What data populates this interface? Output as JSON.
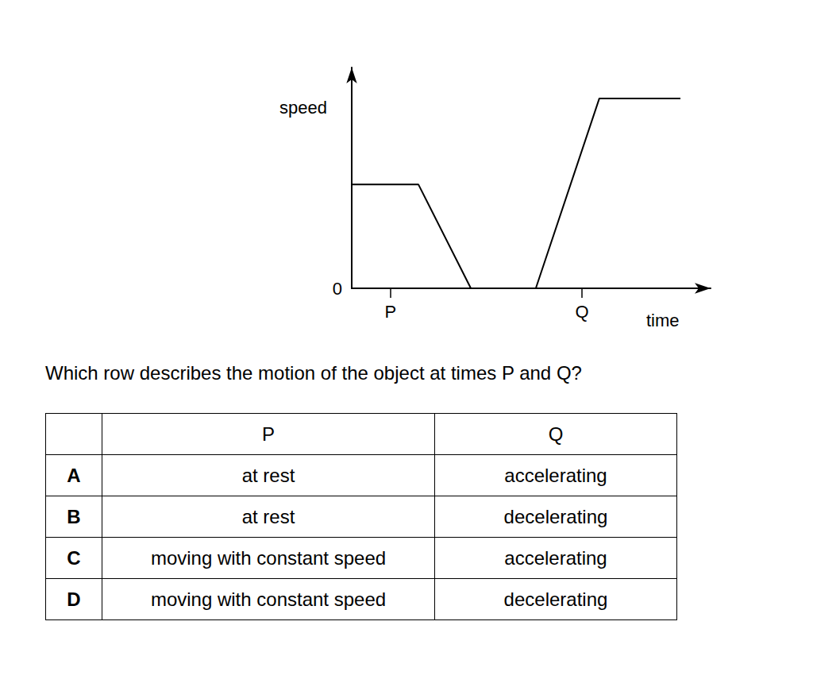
{
  "chart_data": {
    "type": "line",
    "x_label": "time",
    "y_label": "speed",
    "x": [
      0,
      1.86,
      3.32,
      5.13,
      6.9,
      9.16
    ],
    "values": [
      4.7,
      4.7,
      0,
      0,
      8.6,
      8.6
    ],
    "xlim": [
      0,
      10
    ],
    "ylim": [
      0,
      10
    ],
    "xticks": [
      {
        "value": 1.08,
        "label": "P"
      },
      {
        "value": 6.42,
        "label": "Q"
      }
    ],
    "yticks": [
      0
    ],
    "grid": false,
    "color": "#000000"
  },
  "question": "Which row describes the motion of the object at times P and Q?",
  "table": {
    "header": [
      "P",
      "Q"
    ],
    "rows": [
      [
        "A",
        "at rest",
        "accelerating"
      ],
      [
        "B",
        "at rest",
        "decelerating"
      ],
      [
        "C",
        "moving with constant speed",
        "accelerating"
      ],
      [
        "D",
        "moving with constant speed",
        "decelerating"
      ]
    ]
  }
}
